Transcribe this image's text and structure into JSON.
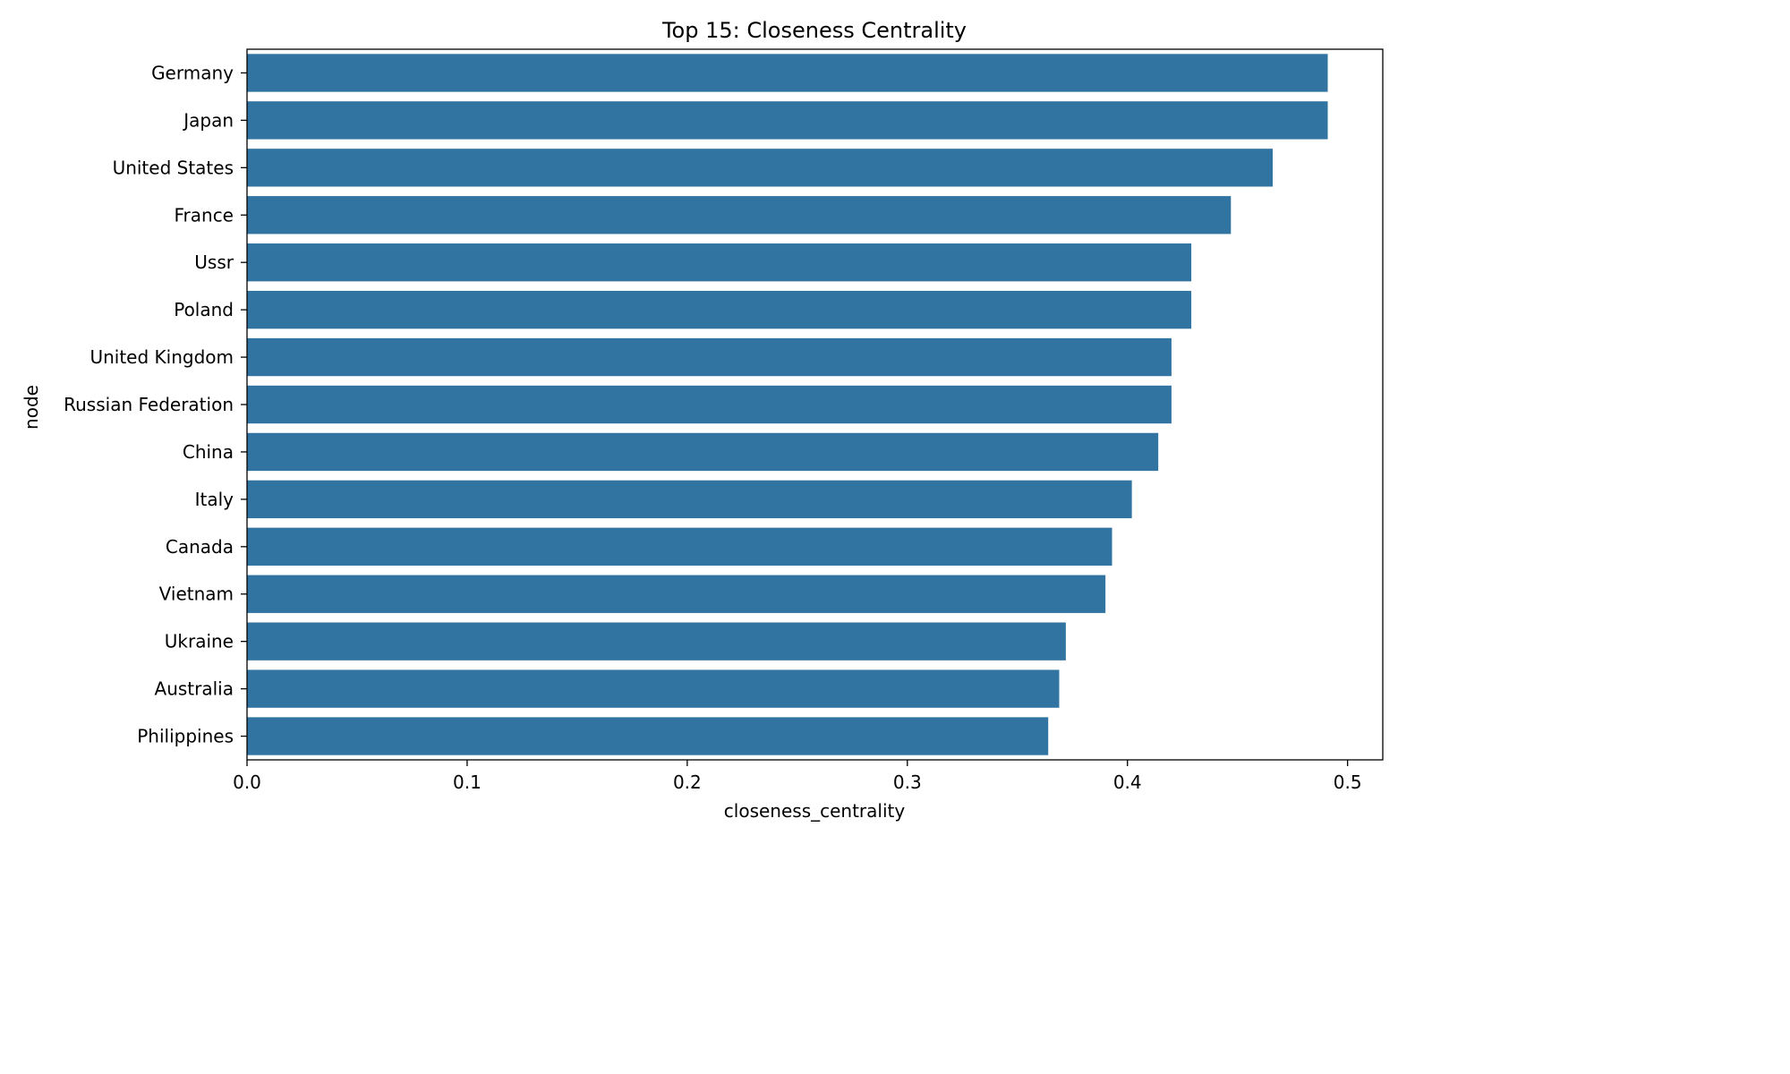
{
  "chart_data": {
    "type": "bar",
    "orientation": "horizontal",
    "title": "Top 15: Closeness Centrality",
    "xlabel": "closeness_centrality",
    "ylabel": "node",
    "categories": [
      "Germany",
      "Japan",
      "United States",
      "France",
      "Ussr",
      "Poland",
      "United Kingdom",
      "Russian Federation",
      "China",
      "Italy",
      "Canada",
      "Vietnam",
      "Ukraine",
      "Australia",
      "Philippines"
    ],
    "values": [
      0.491,
      0.491,
      0.466,
      0.447,
      0.429,
      0.429,
      0.42,
      0.42,
      0.414,
      0.402,
      0.393,
      0.39,
      0.372,
      0.369,
      0.364
    ],
    "xlim": [
      0,
      0.516
    ],
    "xticks": [
      "0.0",
      "0.1",
      "0.2",
      "0.3",
      "0.4",
      "0.5"
    ],
    "xtick_values": [
      0,
      0.1,
      0.2,
      0.3,
      0.4,
      0.5
    ],
    "bar_color": "#3274a1",
    "grid": false,
    "legend": "none"
  }
}
